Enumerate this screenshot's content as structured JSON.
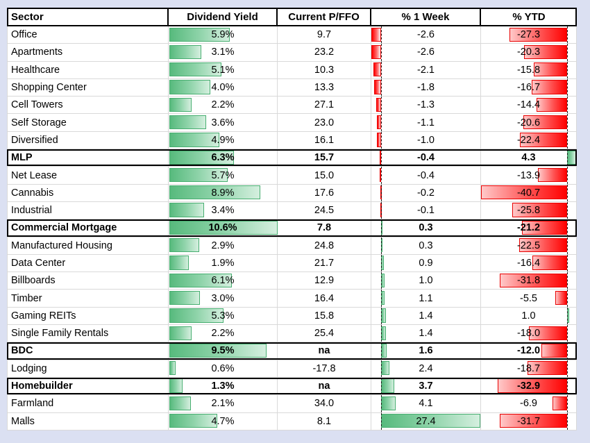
{
  "colors": {
    "background": "#dbe0f2",
    "cell_background": "#ffffff",
    "gridline": "#d9d9d9",
    "heavy_border": "#000000",
    "positive_bar_green": "#57ba7d",
    "negative_bar_red": "#ff0000"
  },
  "chart_data": {
    "type": "table",
    "columns": [
      "Sector",
      "Dividend Yield",
      "Current P/FFO",
      "% 1 Week",
      "% YTD"
    ],
    "layout_hints": {
      "dividend_yield_bars": "green gradient data bars, zero at left edge, max scale 10.6",
      "week_bars": "diverging data bars with dashed zero axis near left, range -2.6 to 27.4, red negative / green positive",
      "ytd_bars": "diverging data bars with dashed zero axis near right, range -40.7 to 4.3, red negative / green positive",
      "bold_boxed_rows": [
        "MLP",
        "Commercial Mortgage",
        "BDC",
        "Homebuilder"
      ]
    },
    "rows": [
      {
        "sector": "Office",
        "dividend_yield_pct": 5.9,
        "current_pffo": 9.7,
        "week_pct": -2.6,
        "ytd_pct": -27.3,
        "bold": false
      },
      {
        "sector": "Apartments",
        "dividend_yield_pct": 3.1,
        "current_pffo": 23.2,
        "week_pct": -2.6,
        "ytd_pct": -20.3,
        "bold": false
      },
      {
        "sector": "Healthcare",
        "dividend_yield_pct": 5.1,
        "current_pffo": 10.3,
        "week_pct": -2.1,
        "ytd_pct": -15.8,
        "bold": false
      },
      {
        "sector": "Shopping Center",
        "dividend_yield_pct": 4.0,
        "current_pffo": 13.3,
        "week_pct": -1.8,
        "ytd_pct": -16.7,
        "bold": false
      },
      {
        "sector": "Cell Towers",
        "dividend_yield_pct": 2.2,
        "current_pffo": 27.1,
        "week_pct": -1.3,
        "ytd_pct": -14.4,
        "bold": false
      },
      {
        "sector": "Self Storage",
        "dividend_yield_pct": 3.6,
        "current_pffo": 23.0,
        "week_pct": -1.1,
        "ytd_pct": -20.6,
        "bold": false
      },
      {
        "sector": "Diversified",
        "dividend_yield_pct": 4.9,
        "current_pffo": 16.1,
        "week_pct": -1.0,
        "ytd_pct": -22.4,
        "bold": false
      },
      {
        "sector": "MLP",
        "dividend_yield_pct": 6.3,
        "current_pffo": 15.7,
        "week_pct": -0.4,
        "ytd_pct": 4.3,
        "bold": true
      },
      {
        "sector": "Net Lease",
        "dividend_yield_pct": 5.7,
        "current_pffo": 15.0,
        "week_pct": -0.4,
        "ytd_pct": -13.9,
        "bold": false
      },
      {
        "sector": "Cannabis",
        "dividend_yield_pct": 8.9,
        "current_pffo": 17.6,
        "week_pct": -0.2,
        "ytd_pct": -40.7,
        "bold": false
      },
      {
        "sector": "Industrial",
        "dividend_yield_pct": 3.4,
        "current_pffo": 24.5,
        "week_pct": -0.1,
        "ytd_pct": -25.8,
        "bold": false
      },
      {
        "sector": "Commercial Mortgage",
        "dividend_yield_pct": 10.6,
        "current_pffo": 7.8,
        "week_pct": 0.3,
        "ytd_pct": -21.2,
        "bold": true
      },
      {
        "sector": "Manufactured Housing",
        "dividend_yield_pct": 2.9,
        "current_pffo": 24.8,
        "week_pct": 0.3,
        "ytd_pct": -22.5,
        "bold": false
      },
      {
        "sector": "Data Center",
        "dividend_yield_pct": 1.9,
        "current_pffo": 21.7,
        "week_pct": 0.9,
        "ytd_pct": -16.4,
        "bold": false
      },
      {
        "sector": "Billboards",
        "dividend_yield_pct": 6.1,
        "current_pffo": 12.9,
        "week_pct": 1.0,
        "ytd_pct": -31.8,
        "bold": false
      },
      {
        "sector": "Timber",
        "dividend_yield_pct": 3.0,
        "current_pffo": 16.4,
        "week_pct": 1.1,
        "ytd_pct": -5.5,
        "bold": false
      },
      {
        "sector": "Gaming REITs",
        "dividend_yield_pct": 5.3,
        "current_pffo": 15.8,
        "week_pct": 1.4,
        "ytd_pct": 1.0,
        "bold": false
      },
      {
        "sector": "Single Family Rentals",
        "dividend_yield_pct": 2.2,
        "current_pffo": 25.4,
        "week_pct": 1.4,
        "ytd_pct": -18.0,
        "bold": false
      },
      {
        "sector": "BDC",
        "dividend_yield_pct": 9.5,
        "current_pffo": "na",
        "week_pct": 1.6,
        "ytd_pct": -12.0,
        "bold": true
      },
      {
        "sector": "Lodging",
        "dividend_yield_pct": 0.6,
        "current_pffo": -17.8,
        "week_pct": 2.4,
        "ytd_pct": -18.7,
        "bold": false
      },
      {
        "sector": "Homebuilder",
        "dividend_yield_pct": 1.3,
        "current_pffo": "na",
        "week_pct": 3.7,
        "ytd_pct": -32.9,
        "bold": true
      },
      {
        "sector": "Farmland",
        "dividend_yield_pct": 2.1,
        "current_pffo": 34.0,
        "week_pct": 4.1,
        "ytd_pct": -6.9,
        "bold": false
      },
      {
        "sector": "Malls",
        "dividend_yield_pct": 4.7,
        "current_pffo": 8.1,
        "week_pct": 27.4,
        "ytd_pct": -31.7,
        "bold": false
      }
    ]
  }
}
